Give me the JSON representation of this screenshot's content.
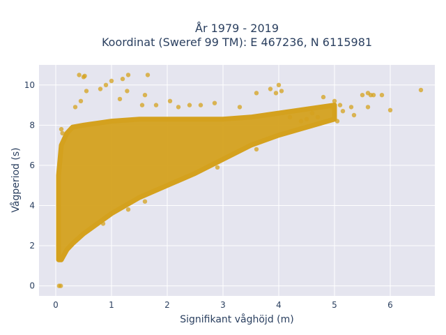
{
  "chart_data": {
    "type": "scatter",
    "title_lines": [
      "År 1979 - 2019",
      "Koordinat (Sweref 99 TM): E 467236, N 6115981"
    ],
    "xlabel": "Signifikant våghöjd (m)",
    "ylabel": "Vågperiod (s)",
    "xlim": [
      -0.3,
      6.8
    ],
    "ylim": [
      -0.5,
      11.0
    ],
    "x_ticks": [
      0,
      1,
      2,
      3,
      4,
      5,
      6
    ],
    "y_ticks": [
      0,
      2,
      4,
      6,
      8,
      10
    ],
    "x_tick_labels": [
      "0",
      "1",
      "2",
      "3",
      "4",
      "5",
      "6"
    ],
    "y_tick_labels": [
      "0",
      "2",
      "4",
      "6",
      "8",
      "10"
    ],
    "grid": true,
    "marker_color": "#D4A11E",
    "plot_background": "#E5E5EF",
    "band": [
      {
        "x": 0.05,
        "low": 1.3,
        "high": 5.5
      },
      {
        "x": 0.1,
        "low": 1.3,
        "high": 7.0
      },
      {
        "x": 0.2,
        "low": 1.8,
        "high": 7.6
      },
      {
        "x": 0.3,
        "low": 2.1,
        "high": 7.9
      },
      {
        "x": 0.5,
        "low": 2.6,
        "high": 8.0
      },
      {
        "x": 0.75,
        "low": 3.1,
        "high": 8.1
      },
      {
        "x": 1.0,
        "low": 3.6,
        "high": 8.2
      },
      {
        "x": 1.5,
        "low": 4.4,
        "high": 8.3
      },
      {
        "x": 2.0,
        "low": 5.0,
        "high": 8.3
      },
      {
        "x": 2.5,
        "low": 5.6,
        "high": 8.3
      },
      {
        "x": 3.0,
        "low": 6.3,
        "high": 8.3
      },
      {
        "x": 3.5,
        "low": 7.0,
        "high": 8.4
      },
      {
        "x": 4.0,
        "low": 7.5,
        "high": 8.6
      },
      {
        "x": 4.5,
        "low": 7.9,
        "high": 8.8
      },
      {
        "x": 5.0,
        "low": 8.3,
        "high": 9.0
      }
    ],
    "points": [
      [
        0.06,
        0.0
      ],
      [
        0.09,
        0.0
      ],
      [
        0.1,
        7.8
      ],
      [
        0.12,
        7.6
      ],
      [
        0.42,
        10.5
      ],
      [
        0.52,
        10.45
      ],
      [
        0.5,
        10.4
      ],
      [
        0.55,
        9.7
      ],
      [
        0.35,
        8.9
      ],
      [
        0.45,
        9.2
      ],
      [
        0.8,
        9.8
      ],
      [
        0.9,
        10.0
      ],
      [
        1.0,
        10.2
      ],
      [
        1.15,
        9.3
      ],
      [
        1.2,
        10.3
      ],
      [
        1.3,
        10.5
      ],
      [
        1.28,
        9.7
      ],
      [
        1.65,
        10.5
      ],
      [
        1.6,
        9.5
      ],
      [
        1.55,
        9.0
      ],
      [
        1.8,
        9.0
      ],
      [
        2.05,
        9.2
      ],
      [
        2.2,
        8.9
      ],
      [
        2.4,
        9.0
      ],
      [
        2.6,
        9.0
      ],
      [
        2.85,
        9.1
      ],
      [
        3.3,
        8.9
      ],
      [
        3.6,
        9.6
      ],
      [
        3.85,
        9.8
      ],
      [
        3.95,
        9.6
      ],
      [
        4.0,
        10.0
      ],
      [
        4.05,
        9.7
      ],
      [
        1.3,
        3.8
      ],
      [
        1.6,
        4.2
      ],
      [
        0.85,
        3.1
      ],
      [
        2.9,
        5.9
      ],
      [
        3.6,
        6.8
      ],
      [
        3.8,
        7.3
      ],
      [
        4.2,
        8.4
      ],
      [
        4.5,
        8.3
      ],
      [
        4.6,
        8.6
      ],
      [
        4.75,
        8.9
      ],
      [
        4.8,
        9.4
      ],
      [
        4.95,
        8.9
      ],
      [
        5.0,
        9.2
      ],
      [
        5.1,
        9.0
      ],
      [
        5.05,
        8.2
      ],
      [
        5.15,
        8.7
      ],
      [
        5.35,
        8.5
      ],
      [
        5.3,
        8.9
      ],
      [
        5.5,
        9.5
      ],
      [
        5.6,
        9.6
      ],
      [
        5.65,
        9.5
      ],
      [
        5.7,
        9.5
      ],
      [
        5.85,
        9.5
      ],
      [
        5.6,
        8.9
      ],
      [
        6.0,
        8.75
      ],
      [
        6.55,
        9.75
      ],
      [
        4.4,
        8.2
      ],
      [
        4.7,
        8.4
      ]
    ]
  }
}
